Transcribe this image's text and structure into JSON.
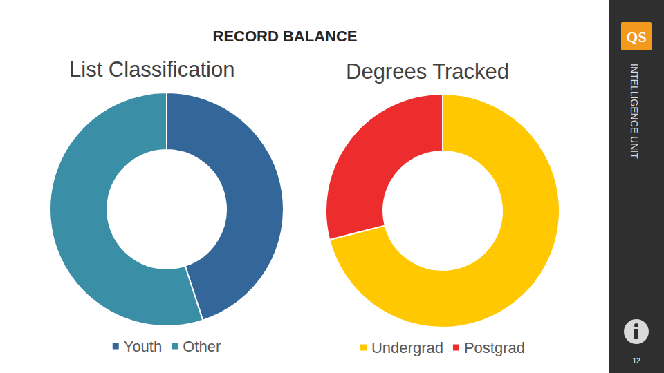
{
  "page": {
    "title": "RECORD BALANCE",
    "brand": "QS",
    "sidebar_label": "INTELLIGENCE UNIT",
    "page_number": 12
  },
  "chart_data": [
    {
      "type": "donut",
      "title": "List Classification",
      "categories": [
        "Youth",
        "Other"
      ],
      "values": [
        45,
        55
      ],
      "colors": [
        "#336699",
        "#3a8ea6"
      ],
      "legend": "bottom"
    },
    {
      "type": "donut",
      "title": "Degrees Tracked",
      "categories": [
        "Undergrad",
        "Postgrad"
      ],
      "values": [
        71,
        29
      ],
      "colors": [
        "#ffc800",
        "#ed2d2d"
      ],
      "legend": "bottom"
    }
  ]
}
